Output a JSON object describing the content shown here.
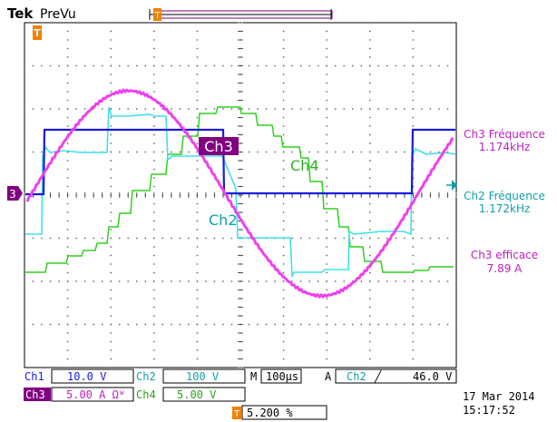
{
  "header": {
    "brand": "Tek",
    "mode": "PreVu",
    "trigger_marker_label": "T"
  },
  "channel_markers": {
    "ch3": "3"
  },
  "overlays": {
    "ch3_label": "Ch3",
    "ch4_label": "Ch4",
    "ch2_label": "Ch2"
  },
  "measurements": [
    {
      "label": "Ch3 Fréquence",
      "value": "1.174kHz",
      "color": "#c020c0"
    },
    {
      "label": "Ch2 Fréquence",
      "value": "1.172kHz",
      "color": "#10a0a8"
    },
    {
      "label": "Ch3 efficace",
      "value": "7.89 A",
      "color": "#c020c0"
    }
  ],
  "status_bar": {
    "ch1_name": "Ch1",
    "ch1_scale": "10.0 V",
    "ch2_name": "Ch2",
    "ch2_scale": "100 V",
    "ch3_name": "Ch3",
    "ch3_scale": "5.00 A Ωᵂ",
    "ch4_name": "Ch4",
    "ch4_scale": "5.00 V",
    "m_label": "M",
    "timebase": "100µs",
    "a_label": "A",
    "trig_source": "Ch2",
    "trig_slope": "╱",
    "trig_level": "46.0 V",
    "trigger_position_icon": "T",
    "trigger_position": "5.200 %",
    "date": "17 Mar  2014",
    "time": "15:17:52"
  },
  "colors": {
    "ch1": "#1a1ae0",
    "ch2": "#40e0e8",
    "ch3": "#ee40ee",
    "ch4": "#30d020",
    "ch3_badge": "#800080",
    "trigger": "#f08000"
  }
}
